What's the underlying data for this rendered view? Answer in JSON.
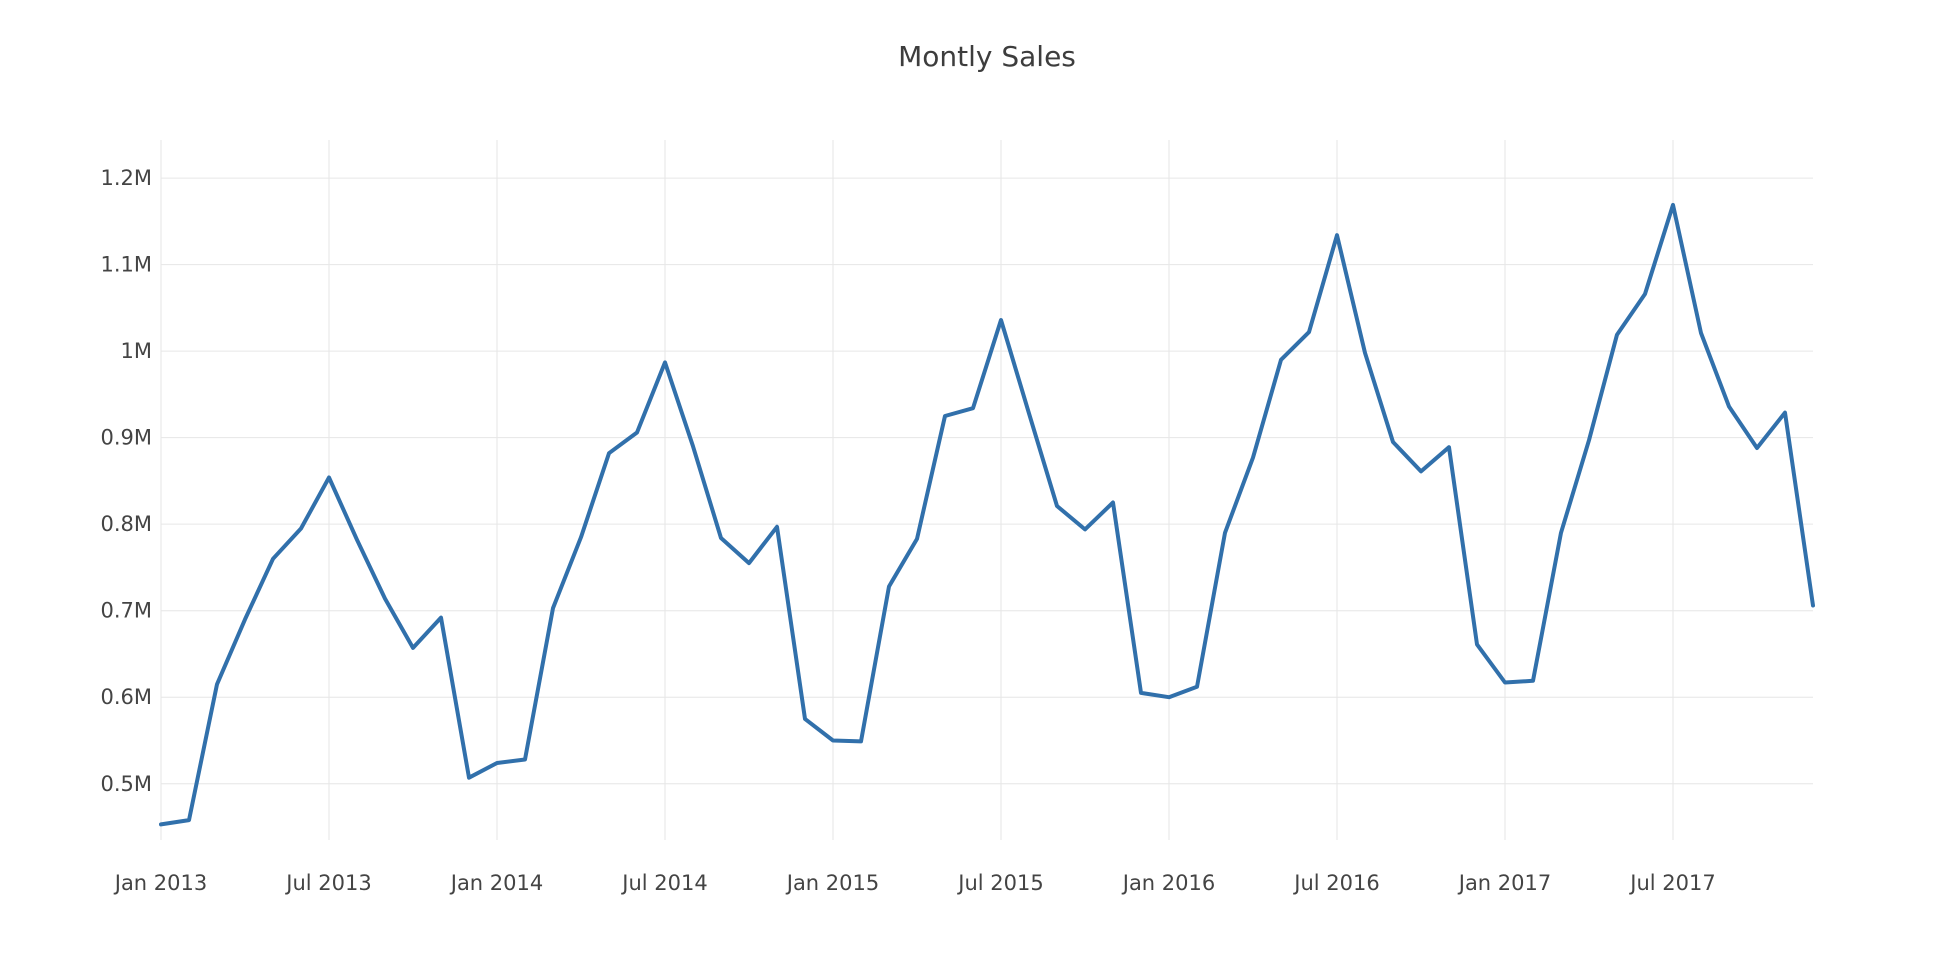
{
  "title": "Montly Sales",
  "chart_data": {
    "type": "line",
    "title": "Montly Sales",
    "xlabel": "",
    "ylabel": "",
    "unit": "millions",
    "grid": true,
    "legend": "none",
    "line_color": "#3170ab",
    "grid_color": "#e6e6e6",
    "background": "#ffffff",
    "text_color": "#444444",
    "title_color": "#3d3d3d",
    "ylim": [
      0.435,
      1.244
    ],
    "x": [
      "2013-01",
      "2013-02",
      "2013-03",
      "2013-04",
      "2013-05",
      "2013-06",
      "2013-07",
      "2013-08",
      "2013-09",
      "2013-10",
      "2013-11",
      "2013-12",
      "2014-01",
      "2014-02",
      "2014-03",
      "2014-04",
      "2014-05",
      "2014-06",
      "2014-07",
      "2014-08",
      "2014-09",
      "2014-10",
      "2014-11",
      "2014-12",
      "2015-01",
      "2015-02",
      "2015-03",
      "2015-04",
      "2015-05",
      "2015-06",
      "2015-07",
      "2015-08",
      "2015-09",
      "2015-10",
      "2015-11",
      "2015-12",
      "2016-01",
      "2016-02",
      "2016-03",
      "2016-04",
      "2016-05",
      "2016-06",
      "2016-07",
      "2016-08",
      "2016-09",
      "2016-10",
      "2016-11",
      "2016-12",
      "2017-01",
      "2017-02",
      "2017-03",
      "2017-04",
      "2017-05",
      "2017-06",
      "2017-07",
      "2017-08",
      "2017-09",
      "2017-10",
      "2017-11",
      "2017-12"
    ],
    "series": [
      {
        "name": "Monthly Sales",
        "values": [
          0.453,
          0.458,
          0.615,
          0.69,
          0.76,
          0.795,
          0.854,
          0.782,
          0.714,
          0.657,
          0.692,
          0.507,
          0.524,
          0.528,
          0.703,
          0.785,
          0.882,
          0.906,
          0.987,
          0.89,
          0.784,
          0.755,
          0.797,
          0.575,
          0.55,
          0.549,
          0.728,
          0.783,
          0.925,
          0.934,
          1.036,
          0.928,
          0.821,
          0.794,
          0.825,
          0.605,
          0.6,
          0.612,
          0.79,
          0.877,
          0.99,
          1.022,
          1.134,
          0.998,
          0.895,
          0.861,
          0.889,
          0.661,
          0.617,
          0.619,
          0.79,
          0.897,
          1.019,
          1.066,
          1.169,
          1.021,
          0.936,
          0.888,
          0.929,
          0.706
        ]
      }
    ],
    "xticks": [
      {
        "label": "Jan 2013",
        "month_index": 0
      },
      {
        "label": "Jul 2013",
        "month_index": 6
      },
      {
        "label": "Jan 2014",
        "month_index": 12
      },
      {
        "label": "Jul 2014",
        "month_index": 18
      },
      {
        "label": "Jan 2015",
        "month_index": 24
      },
      {
        "label": "Jul 2015",
        "month_index": 30
      },
      {
        "label": "Jan 2016",
        "month_index": 36
      },
      {
        "label": "Jul 2016",
        "month_index": 42
      },
      {
        "label": "Jan 2017",
        "month_index": 48
      },
      {
        "label": "Jul 2017",
        "month_index": 54
      }
    ],
    "yticks": {
      "values": [
        0.5,
        0.6,
        0.7,
        0.8,
        0.9,
        1.0,
        1.1,
        1.2
      ],
      "labels": [
        "0.5M",
        "0.6M",
        "0.7M",
        "0.8M",
        "0.9M",
        "1M",
        "1.1M",
        "1.2M"
      ]
    }
  }
}
